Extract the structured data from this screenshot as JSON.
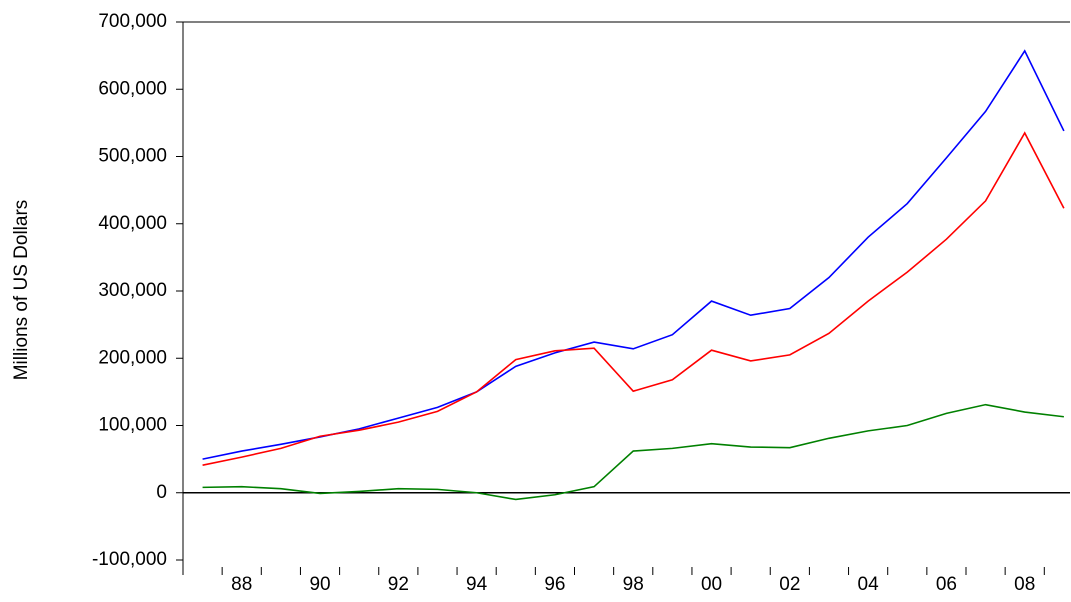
{
  "chart_data": {
    "type": "line",
    "y_label": "Millions of US Dollars",
    "categories": [
      null,
      "88",
      null,
      "90",
      null,
      "92",
      null,
      "94",
      null,
      "96",
      null,
      "98",
      null,
      "00",
      null,
      "02",
      null,
      "04",
      null,
      "06",
      null,
      "08",
      null
    ],
    "series": [
      {
        "color": "#0000ff",
        "values": [
          50000,
          62000,
          72000,
          83000,
          95000,
          111000,
          127000,
          150000,
          188000,
          208000,
          224000,
          214000,
          235000,
          285000,
          264000,
          274000,
          320000,
          380000,
          430000,
          498000,
          567000,
          657000,
          538000
        ]
      },
      {
        "color": "#ff0000",
        "values": [
          41000,
          53000,
          66000,
          84000,
          93000,
          105000,
          121000,
          150000,
          198000,
          211000,
          215000,
          151000,
          168000,
          212000,
          196000,
          205000,
          237000,
          285000,
          328000,
          377000,
          434000,
          535000,
          423000
        ]
      },
      {
        "color": "#008000",
        "values": [
          8000,
          9000,
          6000,
          -1000,
          2000,
          6000,
          5000,
          0,
          -10000,
          -3000,
          9000,
          62000,
          66000,
          73000,
          68000,
          67000,
          81000,
          92000,
          100000,
          118000,
          131000,
          120000,
          113000
        ]
      }
    ],
    "ylim": [
      -100000,
      700000
    ],
    "yticks": [
      {
        "value": -100000,
        "label": "-100,000"
      },
      0,
      {
        "value": 100000,
        "label": "100,000"
      },
      {
        "value": 200000,
        "label": "200,000"
      },
      {
        "value": 300000,
        "label": "300,000"
      },
      {
        "value": 400000,
        "label": "400,000"
      },
      {
        "value": 500000,
        "label": "500,000"
      },
      {
        "value": 600000,
        "label": "600,000"
      },
      {
        "value": 700000,
        "label": "700,000"
      }
    ],
    "zero_line": true
  }
}
